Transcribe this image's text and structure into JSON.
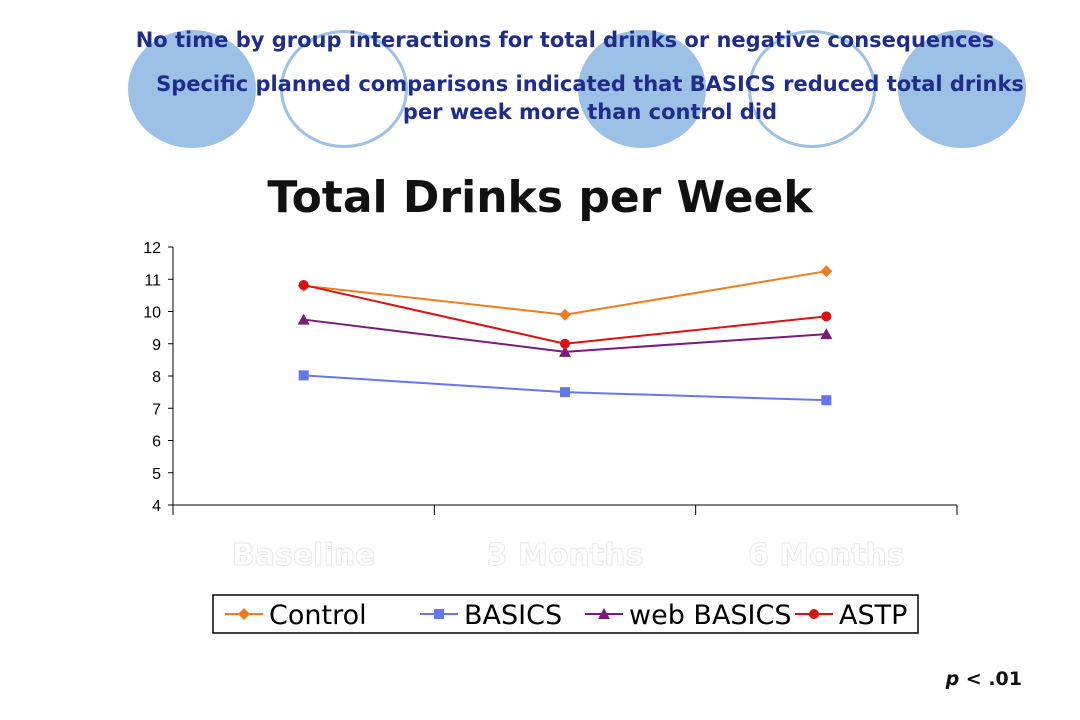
{
  "bullets": [
    "No time by group interactions for total drinks or negative consequences",
    "Specific planned comparisons indicated that BASICS reduced total drinks per week more than control did"
  ],
  "note": {
    "p_symbol": "p",
    "rest": " < .01"
  },
  "colors": {
    "deco": "#9cc0e6",
    "bullet_text": "#1f2d8a"
  },
  "chart_data": {
    "type": "line",
    "title": "Total Drinks per Week",
    "categories": [
      "Baseline",
      "3 Months",
      "6 Months"
    ],
    "ylim": [
      4,
      12
    ],
    "yticks": [
      4,
      5,
      6,
      7,
      8,
      9,
      10,
      11,
      12
    ],
    "xlabel": "",
    "ylabel": "",
    "grid": false,
    "legend": "bottom",
    "series": [
      {
        "name": "Control",
        "values": [
          10.8,
          9.9,
          11.25
        ],
        "color": "#f07c1e",
        "marker": "diamond"
      },
      {
        "name": "BASICS",
        "values": [
          8.02,
          7.5,
          7.25
        ],
        "color": "#6677ee",
        "marker": "square"
      },
      {
        "name": "web BASICS",
        "values": [
          9.75,
          8.75,
          9.3
        ],
        "color": "#7a1a7e",
        "marker": "triangle"
      },
      {
        "name": "ASTP",
        "values": [
          10.82,
          9.0,
          9.85
        ],
        "color": "#dd1111",
        "marker": "circle"
      }
    ]
  }
}
